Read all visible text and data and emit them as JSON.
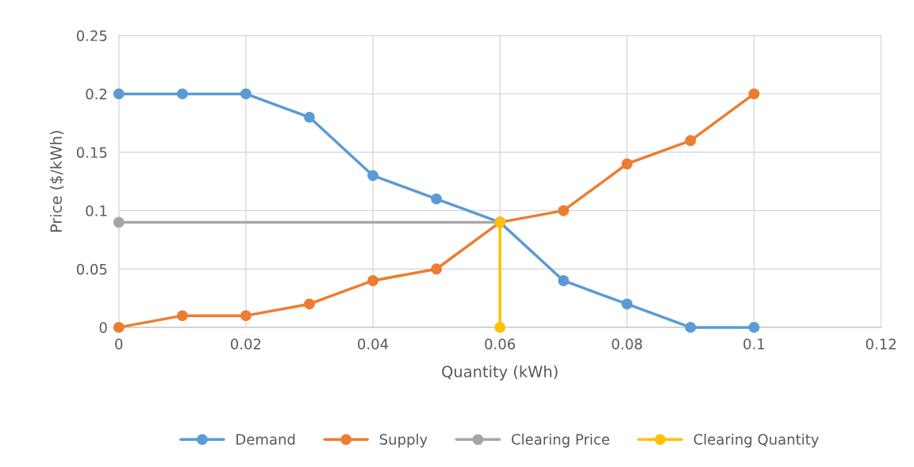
{
  "chart_data": {
    "type": "line",
    "xlabel": "Quantity (kWh)",
    "ylabel": "Price ($/kWh)",
    "xlim": [
      0,
      0.12
    ],
    "xticks": [
      0,
      0.02,
      0.04,
      0.06,
      0.08,
      0.1,
      0.12
    ],
    "ylim": [
      0,
      0.25
    ],
    "yticks": [
      0,
      0.05,
      0.1,
      0.15,
      0.2,
      0.25
    ],
    "grid": true,
    "legend": "bottom",
    "marker": "circle",
    "line_style": "solid",
    "series": [
      {
        "name": "Demand",
        "color": "#5b9bd5",
        "x": [
          0,
          0.01,
          0.02,
          0.03,
          0.04,
          0.05,
          0.06,
          0.07,
          0.08,
          0.09,
          0.1
        ],
        "values": [
          0.2,
          0.2,
          0.2,
          0.18,
          0.13,
          0.11,
          0.09,
          0.04,
          0.02,
          0,
          0
        ]
      },
      {
        "name": "Supply",
        "color": "#ed7d31",
        "x": [
          0,
          0.01,
          0.02,
          0.03,
          0.04,
          0.05,
          0.06,
          0.07,
          0.08,
          0.09,
          0.1
        ],
        "values": [
          0,
          0.01,
          0.01,
          0.02,
          0.04,
          0.05,
          0.09,
          0.1,
          0.14,
          0.16,
          0.2
        ]
      },
      {
        "name": "Clearing Price",
        "color": "#a5a5a5",
        "x": [
          0,
          0.06
        ],
        "values": [
          0.09,
          0.09
        ]
      },
      {
        "name": "Clearing Quantity",
        "color": "#ffc000",
        "x": [
          0.06,
          0.06
        ],
        "values": [
          0.09,
          0
        ]
      }
    ]
  }
}
